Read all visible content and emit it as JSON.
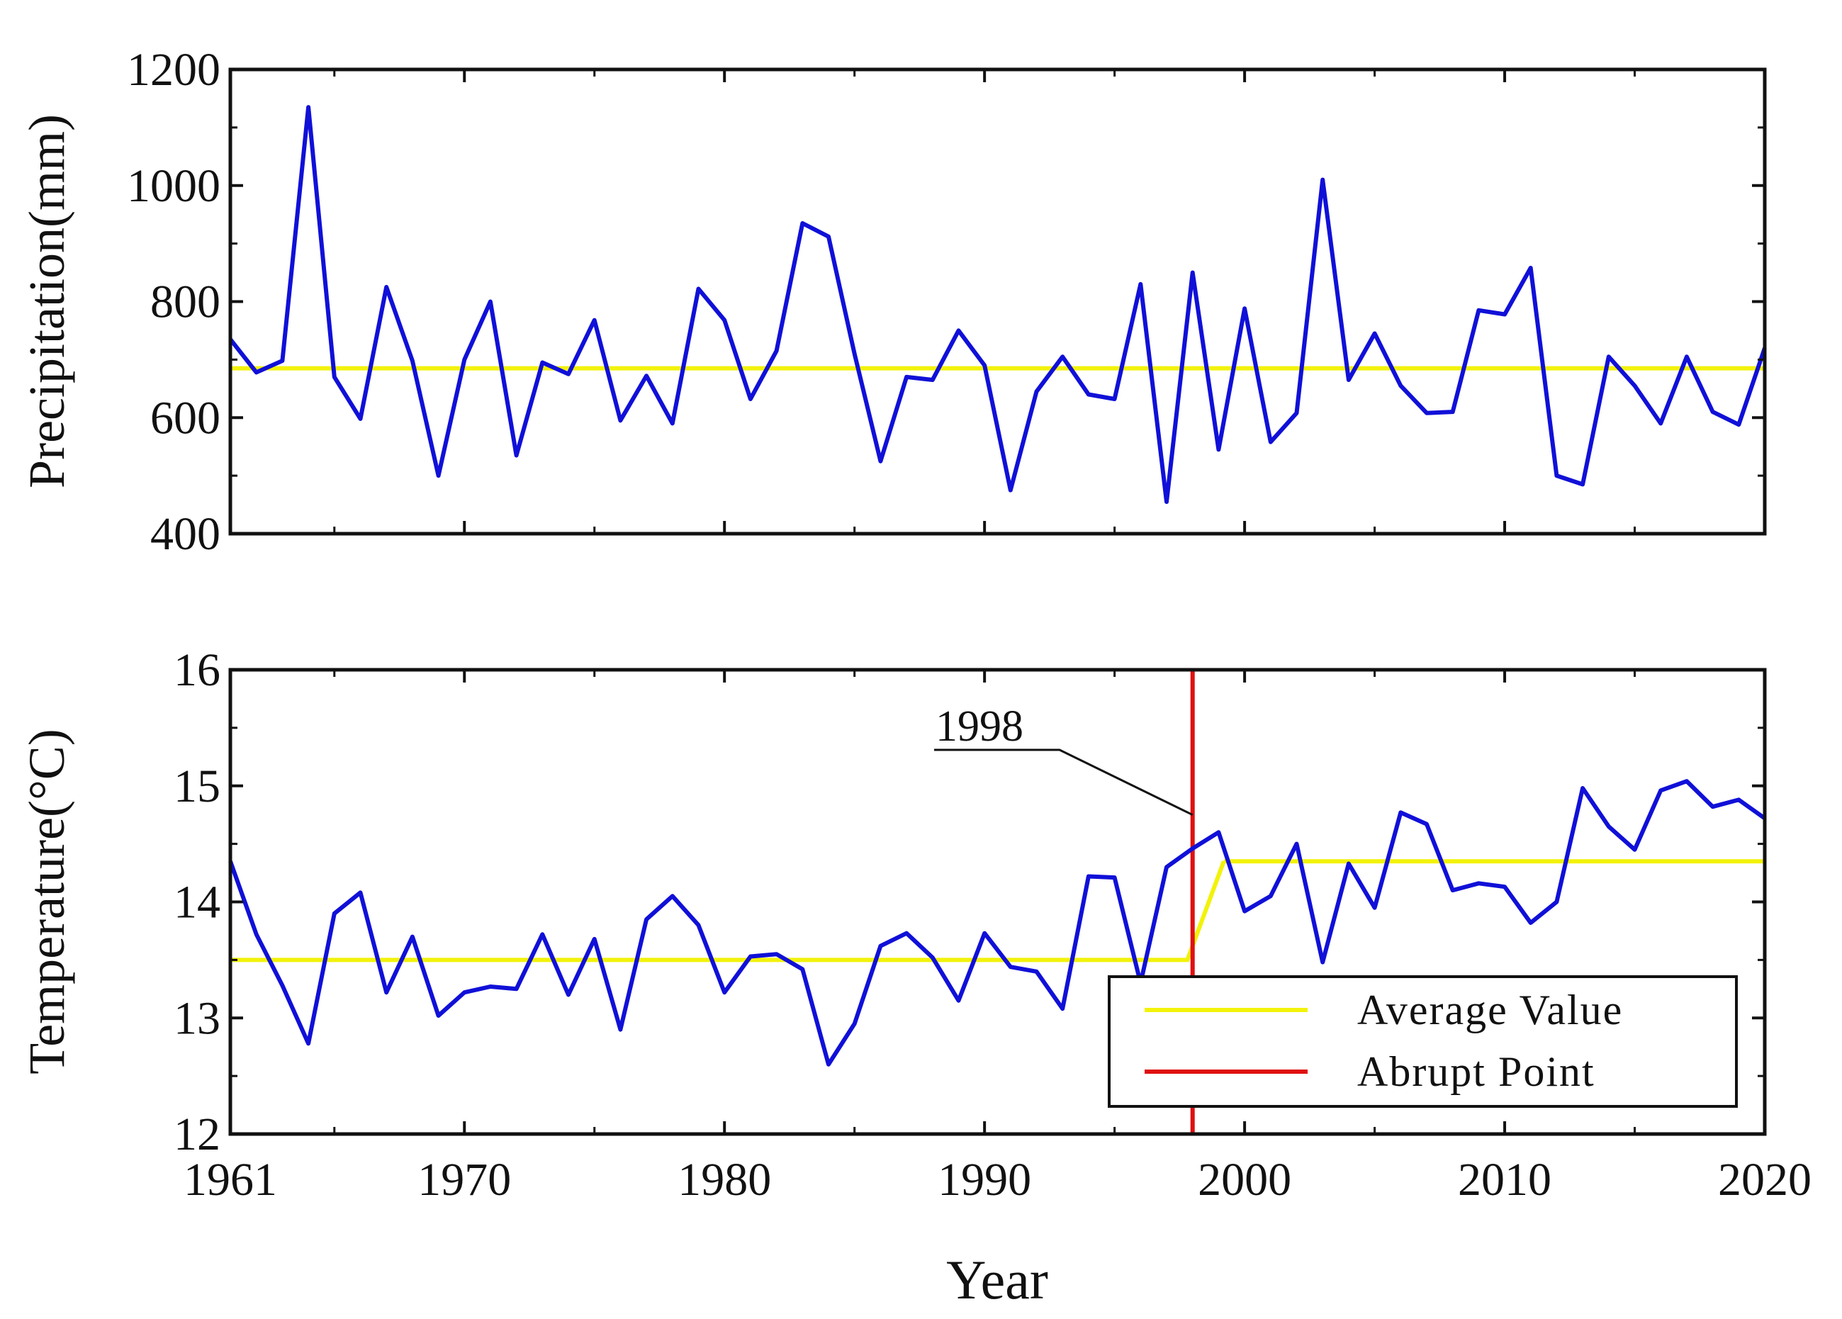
{
  "chart_data": [
    {
      "type": "line",
      "ylabel": "Precipitation(mm)",
      "xlabel": "",
      "xlim": [
        1961,
        2020
      ],
      "ylim": [
        400,
        1200
      ],
      "yticks": [
        400,
        600,
        800,
        1000,
        1200
      ],
      "grid": false,
      "x": [
        1961,
        1962,
        1963,
        1964,
        1965,
        1966,
        1967,
        1968,
        1969,
        1970,
        1971,
        1972,
        1973,
        1974,
        1975,
        1976,
        1977,
        1978,
        1979,
        1980,
        1981,
        1982,
        1983,
        1984,
        1985,
        1986,
        1987,
        1988,
        1989,
        1990,
        1991,
        1992,
        1993,
        1994,
        1995,
        1996,
        1997,
        1998,
        1999,
        2000,
        2001,
        2002,
        2003,
        2004,
        2005,
        2006,
        2007,
        2008,
        2009,
        2010,
        2011,
        2012,
        2013,
        2014,
        2015,
        2016,
        2017,
        2018,
        2019,
        2020
      ],
      "series": [
        {
          "name": "Precipitation",
          "color": "#1010d8",
          "values": [
            735,
            678,
            698,
            1135,
            670,
            598,
            825,
            698,
            500,
            700,
            800,
            535,
            695,
            675,
            768,
            595,
            672,
            590,
            822,
            768,
            632,
            715,
            935,
            912,
            710,
            525,
            670,
            665,
            750,
            690,
            475,
            645,
            705,
            640,
            632,
            830,
            455,
            850,
            545,
            788,
            558,
            608,
            1010,
            665,
            745,
            655,
            608,
            610,
            785,
            778,
            858,
            500,
            485,
            705,
            655,
            590,
            705,
            610,
            588,
            720
          ]
        },
        {
          "name": "Average Value",
          "color": "#f2f20a",
          "values_constant": 685
        }
      ]
    },
    {
      "type": "line",
      "ylabel": "Temperature(°C)",
      "xlabel": "Year",
      "xlim": [
        1961,
        2020
      ],
      "ylim": [
        12,
        16
      ],
      "yticks": [
        12,
        13,
        14,
        15,
        16
      ],
      "xticks": [
        1961,
        1970,
        1980,
        1990,
        2000,
        2010,
        2020
      ],
      "grid": false,
      "x": [
        1961,
        1962,
        1963,
        1964,
        1965,
        1966,
        1967,
        1968,
        1969,
        1970,
        1971,
        1972,
        1973,
        1974,
        1975,
        1976,
        1977,
        1978,
        1979,
        1980,
        1981,
        1982,
        1983,
        1984,
        1985,
        1986,
        1987,
        1988,
        1989,
        1990,
        1991,
        1992,
        1993,
        1994,
        1995,
        1996,
        1997,
        1998,
        1999,
        2000,
        2001,
        2002,
        2003,
        2004,
        2005,
        2006,
        2007,
        2008,
        2009,
        2010,
        2011,
        2012,
        2013,
        2014,
        2015,
        2016,
        2017,
        2018,
        2019,
        2020
      ],
      "series": [
        {
          "name": "Temperature",
          "color": "#1010d8",
          "values": [
            14.35,
            13.72,
            13.28,
            12.78,
            13.9,
            14.08,
            13.22,
            13.7,
            13.02,
            13.22,
            13.27,
            13.25,
            13.72,
            13.2,
            13.68,
            12.9,
            13.85,
            14.05,
            13.8,
            13.22,
            13.53,
            13.55,
            13.42,
            12.6,
            12.95,
            13.62,
            13.73,
            13.52,
            13.15,
            13.73,
            13.44,
            13.4,
            13.08,
            14.22,
            14.21,
            13.3,
            14.3,
            14.46,
            14.6,
            13.92,
            14.05,
            14.5,
            13.48,
            14.33,
            13.95,
            14.77,
            14.67,
            14.1,
            14.16,
            14.13,
            13.82,
            14.0,
            14.98,
            14.65,
            14.45,
            14.96,
            15.04,
            14.82,
            14.88,
            14.72
          ]
        },
        {
          "name": "Average Value",
          "color": "#f2f20a",
          "segments": [
            {
              "from": 1961,
              "to": 1997.8,
              "value": 13.5
            },
            {
              "from": 1999.2,
              "to": 2020,
              "value": 14.35
            }
          ]
        },
        {
          "name": "Abrupt Point",
          "color": "#e01010",
          "x_value": 1998
        }
      ],
      "annotations": [
        {
          "text": "1998",
          "points_to_year": 1998,
          "points_to_value": 14.75
        }
      ],
      "legend": {
        "position": "bottom-right",
        "entries": [
          {
            "label": "Average Value",
            "color": "#f2f20a"
          },
          {
            "label": "Abrupt Point",
            "color": "#e01010"
          }
        ]
      }
    }
  ]
}
